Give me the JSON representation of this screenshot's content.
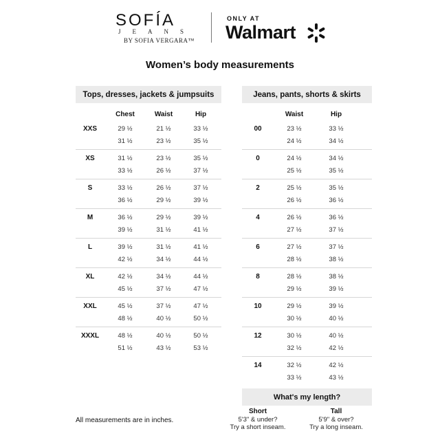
{
  "brand": {
    "sofia": "SOFÍA",
    "jeans": "JEANS",
    "by_line": "BY SOFIA VERGARA™",
    "only_at": "ONLY AT",
    "retailer": "Walmart",
    "spark_icon": "walmart-spark-icon"
  },
  "title": "Women’s body measurements",
  "tops": {
    "header": "Tops, dresses, jackets & jumpsuits",
    "columns": [
      "Chest",
      "Waist",
      "Hip"
    ],
    "rows": [
      {
        "size": "XXS",
        "chest": [
          "29 ½",
          "31 ½"
        ],
        "waist": [
          "21 ½",
          "23 ½"
        ],
        "hip": [
          "33 ½",
          "35 ½"
        ]
      },
      {
        "size": "XS",
        "chest": [
          "31 ½",
          "33 ½"
        ],
        "waist": [
          "23 ½",
          "26 ½"
        ],
        "hip": [
          "35 ½",
          "37 ½"
        ]
      },
      {
        "size": "S",
        "chest": [
          "33 ½",
          "36 ½"
        ],
        "waist": [
          "26 ½",
          "29 ½"
        ],
        "hip": [
          "37 ½",
          "39 ½"
        ]
      },
      {
        "size": "M",
        "chest": [
          "36 ½",
          "39 ½"
        ],
        "waist": [
          "29 ½",
          "31 ½"
        ],
        "hip": [
          "39 ½",
          "41 ½"
        ]
      },
      {
        "size": "L",
        "chest": [
          "39 ½",
          "42 ½"
        ],
        "waist": [
          "31 ½",
          "34 ½"
        ],
        "hip": [
          "41 ½",
          "44 ½"
        ]
      },
      {
        "size": "XL",
        "chest": [
          "42 ½",
          "45 ½"
        ],
        "waist": [
          "34 ½",
          "37 ½"
        ],
        "hip": [
          "44 ½",
          "47 ½"
        ]
      },
      {
        "size": "XXL",
        "chest": [
          "45 ½",
          "48 ½"
        ],
        "waist": [
          "37 ½",
          "40 ½"
        ],
        "hip": [
          "47 ½",
          "50 ½"
        ]
      },
      {
        "size": "XXXL",
        "chest": [
          "48 ½",
          "51 ½"
        ],
        "waist": [
          "40 ½",
          "43 ½"
        ],
        "hip": [
          "50 ½",
          "53 ½"
        ]
      }
    ]
  },
  "bottoms": {
    "header": "Jeans, pants, shorts & skirts",
    "columns": [
      "Waist",
      "Hip"
    ],
    "rows": [
      {
        "size": "00",
        "waist": [
          "23 ½",
          "24 ½"
        ],
        "hip": [
          "33 ½",
          "34 ½"
        ]
      },
      {
        "size": "0",
        "waist": [
          "24 ½",
          "25 ½"
        ],
        "hip": [
          "34 ½",
          "35 ½"
        ]
      },
      {
        "size": "2",
        "waist": [
          "25 ½",
          "26 ½"
        ],
        "hip": [
          "35 ½",
          "36 ½"
        ]
      },
      {
        "size": "4",
        "waist": [
          "26 ½",
          "27 ½"
        ],
        "hip": [
          "36 ½",
          "37 ½"
        ]
      },
      {
        "size": "6",
        "waist": [
          "27 ½",
          "28 ½"
        ],
        "hip": [
          "37 ½",
          "38 ½"
        ]
      },
      {
        "size": "8",
        "waist": [
          "28 ½",
          "29 ½"
        ],
        "hip": [
          "38 ½",
          "39 ½"
        ]
      },
      {
        "size": "10",
        "waist": [
          "29 ½",
          "30 ½"
        ],
        "hip": [
          "39 ½",
          "40 ½"
        ]
      },
      {
        "size": "12",
        "waist": [
          "30 ½",
          "32 ½"
        ],
        "hip": [
          "40 ½",
          "42 ½"
        ]
      },
      {
        "size": "14",
        "waist": [
          "32 ½",
          "33 ½"
        ],
        "hip": [
          "42 ½",
          "43 ½"
        ]
      }
    ]
  },
  "length": {
    "header": "What's my length?",
    "short": {
      "title": "Short",
      "line1": "5'3\" & under?",
      "line2": "Try a short inseam."
    },
    "tall": {
      "title": "Tall",
      "line1": "5'9\" & over?",
      "line2": "Try a long inseam."
    }
  },
  "note": "All measurements are in inches.",
  "colors": {
    "header_bg": "#ebebeb",
    "divider": "#d6d6d6"
  }
}
